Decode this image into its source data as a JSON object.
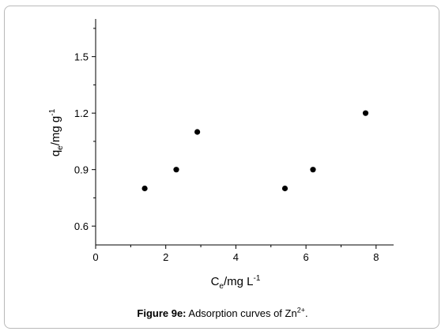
{
  "chart_data": {
    "type": "scatter",
    "title": "",
    "xlabel": {
      "main": "C",
      "subscript": "e",
      "unit": "/mg L",
      "superscript": "-1"
    },
    "ylabel": {
      "main": "q",
      "subscript": "e",
      "unit": "/mg g",
      "superscript": "-1"
    },
    "xlim": [
      0,
      8.5
    ],
    "ylim": [
      0.5,
      1.7
    ],
    "x_ticks": [
      0,
      2,
      4,
      6,
      8
    ],
    "x_tick_labels": [
      "0",
      "2",
      "4",
      "6",
      "8"
    ],
    "y_ticks": [
      0.6,
      0.9,
      1.2,
      1.5
    ],
    "y_tick_labels": [
      "0.6",
      "0.9",
      "1.2",
      "1.5"
    ],
    "grid": false,
    "legend": "none",
    "series": [
      {
        "marker": "filled-circle",
        "color": "#000000",
        "points": [
          {
            "x": 1.4,
            "y": 0.8
          },
          {
            "x": 2.3,
            "y": 0.9
          },
          {
            "x": 2.9,
            "y": 1.1
          },
          {
            "x": 5.4,
            "y": 0.8
          },
          {
            "x": 6.2,
            "y": 0.9
          },
          {
            "x": 7.7,
            "y": 1.2
          }
        ]
      }
    ]
  },
  "caption": {
    "label": "Figure 9e:",
    "text_before": " Adsorption curves of Zn",
    "superscript": "2+",
    "text_after": "."
  }
}
